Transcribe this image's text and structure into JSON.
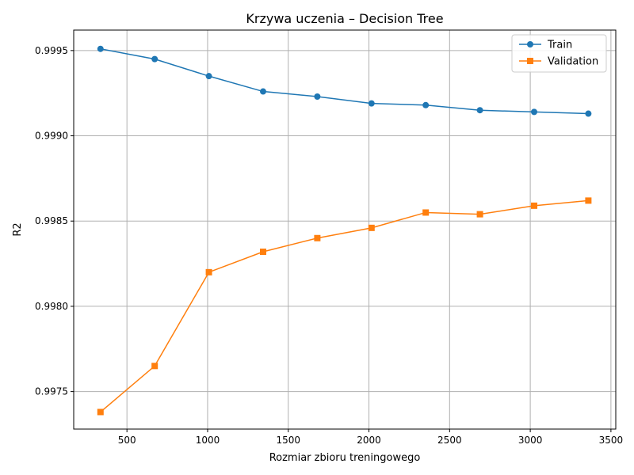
{
  "chart_data": {
    "type": "line",
    "title": "Krzywa uczenia – Decision Tree",
    "xlabel": "Rozmiar zbioru treningowego",
    "ylabel": "R2",
    "xlim": [
      170,
      3530
    ],
    "ylim": [
      0.99728,
      0.99962
    ],
    "xticks": [
      500,
      1000,
      1500,
      2000,
      2500,
      3000,
      3500
    ],
    "xtick_labels": [
      "500",
      "1000",
      "1500",
      "2000",
      "2500",
      "3000",
      "3500"
    ],
    "yticks": [
      0.9975,
      0.998,
      0.9985,
      0.999,
      0.9995
    ],
    "ytick_labels": [
      "0.9975",
      "0.9980",
      "0.9985",
      "0.9990",
      "0.9995"
    ],
    "grid": true,
    "legend_position": "upper right",
    "x": [
      336,
      672,
      1008,
      1344,
      1680,
      2016,
      2352,
      2688,
      3024,
      3360
    ],
    "series": [
      {
        "name": "Train",
        "color": "#1f77b4",
        "marker": "circle",
        "values": [
          0.99951,
          0.99945,
          0.99935,
          0.99926,
          0.99923,
          0.99919,
          0.99918,
          0.99915,
          0.99914,
          0.99913
        ]
      },
      {
        "name": "Validation",
        "color": "#ff7f0e",
        "marker": "square",
        "values": [
          0.99738,
          0.99765,
          0.9982,
          0.99832,
          0.9984,
          0.99846,
          0.99855,
          0.99854,
          0.99859,
          0.99862
        ]
      }
    ]
  }
}
